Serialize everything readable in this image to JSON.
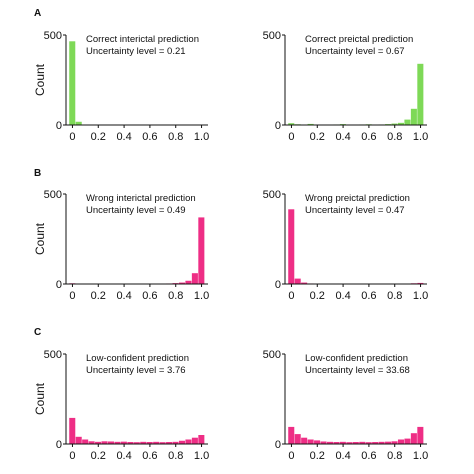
{
  "panel_letters": [
    "A",
    "B",
    "C"
  ],
  "chart_data": [
    {
      "type": "bar",
      "panel": "A",
      "position": "left",
      "annotation": [
        "Correct interictal prediction",
        "Uncertainty level = 0.21"
      ],
      "ylabel": "Count",
      "ylim": [
        0,
        500
      ],
      "yticks": [
        0,
        500
      ],
      "xlim": [
        -0.05,
        1.05
      ],
      "xticks": [
        "0",
        "0.2",
        "0.4",
        "0.6",
        "0.8",
        "1.0"
      ],
      "xtick_values": [
        0,
        0.2,
        0.4,
        0.6,
        0.8,
        1.0
      ],
      "bin_width": 0.05,
      "bins": [
        0,
        0.05,
        0.1,
        0.15,
        0.2,
        0.25,
        0.3,
        0.35,
        0.4,
        0.45,
        0.5,
        0.55,
        0.6,
        0.65,
        0.7,
        0.75,
        0.8,
        0.85,
        0.9,
        0.95,
        1.0
      ],
      "values": [
        465,
        18,
        2,
        1,
        1,
        0,
        0,
        0,
        0,
        0,
        0,
        0,
        0,
        0,
        0,
        0,
        0,
        0,
        0,
        0,
        0
      ],
      "color": "#7ed957"
    },
    {
      "type": "bar",
      "panel": "A",
      "position": "right",
      "annotation": [
        "Correct preictal prediction",
        "Uncertainty level = 0.67"
      ],
      "ylabel": "",
      "ylim": [
        0,
        500
      ],
      "yticks": [
        0,
        500
      ],
      "xlim": [
        -0.05,
        1.05
      ],
      "xticks": [
        "0",
        "0.2",
        "0.4",
        "0.6",
        "0.8",
        "1.0"
      ],
      "xtick_values": [
        0,
        0.2,
        0.4,
        0.6,
        0.8,
        1.0
      ],
      "bin_width": 0.05,
      "bins": [
        0,
        0.05,
        0.1,
        0.15,
        0.2,
        0.25,
        0.3,
        0.35,
        0.4,
        0.45,
        0.5,
        0.55,
        0.6,
        0.65,
        0.7,
        0.75,
        0.8,
        0.85,
        0.9,
        0.95,
        1.0
      ],
      "values": [
        10,
        4,
        2,
        6,
        2,
        2,
        2,
        3,
        5,
        2,
        2,
        3,
        4,
        2,
        3,
        5,
        8,
        12,
        30,
        90,
        340
      ],
      "color": "#7ed957"
    },
    {
      "type": "bar",
      "panel": "B",
      "position": "left",
      "annotation": [
        "Wrong interictal prediction",
        "Uncertainty level = 0.49"
      ],
      "ylabel": "Count",
      "ylim": [
        0,
        500
      ],
      "yticks": [
        0,
        500
      ],
      "xlim": [
        -0.05,
        1.05
      ],
      "xticks": [
        "0",
        "0.2",
        "0.4",
        "0.6",
        "0.8",
        "1.0"
      ],
      "xtick_values": [
        0,
        0.2,
        0.4,
        0.6,
        0.8,
        1.0
      ],
      "bin_width": 0.05,
      "bins": [
        0,
        0.05,
        0.1,
        0.15,
        0.2,
        0.25,
        0.3,
        0.35,
        0.4,
        0.45,
        0.5,
        0.55,
        0.6,
        0.65,
        0.7,
        0.75,
        0.8,
        0.85,
        0.9,
        0.95,
        1.0
      ],
      "values": [
        4,
        2,
        1,
        1,
        1,
        0,
        0,
        1,
        0,
        0,
        1,
        0,
        1,
        1,
        2,
        3,
        5,
        8,
        18,
        60,
        370
      ],
      "color": "#ee2e85"
    },
    {
      "type": "bar",
      "panel": "B",
      "position": "right",
      "annotation": [
        "Wrong preictal prediction",
        "Uncertainty level = 0.47"
      ],
      "ylabel": "",
      "ylim": [
        0,
        500
      ],
      "yticks": [
        0,
        500
      ],
      "xlim": [
        -0.05,
        1.05
      ],
      "xticks": [
        "0",
        "0.2",
        "0.4",
        "0.6",
        "0.8",
        "1.0"
      ],
      "xtick_values": [
        0,
        0.2,
        0.4,
        0.6,
        0.8,
        1.0
      ],
      "bin_width": 0.05,
      "bins": [
        0,
        0.05,
        0.1,
        0.15,
        0.2,
        0.25,
        0.3,
        0.35,
        0.4,
        0.45,
        0.5,
        0.55,
        0.6,
        0.65,
        0.7,
        0.75,
        0.8,
        0.85,
        0.9,
        0.95,
        1.0
      ],
      "values": [
        415,
        30,
        8,
        3,
        2,
        1,
        1,
        1,
        1,
        0,
        1,
        0,
        0,
        1,
        0,
        1,
        1,
        1,
        2,
        4,
        6
      ],
      "color": "#ee2e85"
    },
    {
      "type": "bar",
      "panel": "C",
      "position": "left",
      "annotation": [
        "Low-confident prediction",
        "Uncertainty level = 3.76"
      ],
      "ylabel": "Count",
      "ylim": [
        0,
        500
      ],
      "yticks": [
        0,
        500
      ],
      "xlim": [
        -0.05,
        1.05
      ],
      "xticks": [
        "0",
        "0.2",
        "0.4",
        "0.6",
        "0.8",
        "1.0"
      ],
      "xtick_values": [
        0,
        0.2,
        0.4,
        0.6,
        0.8,
        1.0
      ],
      "bin_width": 0.05,
      "bins": [
        0,
        0.05,
        0.1,
        0.15,
        0.2,
        0.25,
        0.3,
        0.35,
        0.4,
        0.45,
        0.5,
        0.55,
        0.6,
        0.65,
        0.7,
        0.75,
        0.8,
        0.85,
        0.9,
        0.95,
        1.0
      ],
      "values": [
        145,
        40,
        25,
        15,
        12,
        15,
        14,
        12,
        13,
        11,
        10,
        12,
        11,
        12,
        10,
        11,
        12,
        18,
        25,
        35,
        50
      ],
      "color": "#ee2e85"
    },
    {
      "type": "bar",
      "panel": "C",
      "position": "right",
      "annotation": [
        "Low-confident prediction",
        "Uncertainty level = 33.68"
      ],
      "ylabel": "",
      "ylim": [
        0,
        500
      ],
      "yticks": [
        0,
        500
      ],
      "xlim": [
        -0.05,
        1.05
      ],
      "xticks": [
        "0",
        "0.2",
        "0.4",
        "0.6",
        "0.8",
        "1.0"
      ],
      "xtick_values": [
        0,
        0.2,
        0.4,
        0.6,
        0.8,
        1.0
      ],
      "bin_width": 0.05,
      "bins": [
        0,
        0.05,
        0.1,
        0.15,
        0.2,
        0.25,
        0.3,
        0.35,
        0.4,
        0.45,
        0.5,
        0.55,
        0.6,
        0.65,
        0.7,
        0.75,
        0.8,
        0.85,
        0.9,
        0.95,
        1.0
      ],
      "values": [
        95,
        55,
        35,
        25,
        20,
        14,
        12,
        11,
        12,
        10,
        11,
        12,
        10,
        11,
        12,
        13,
        15,
        25,
        30,
        60,
        95
      ],
      "color": "#ee2e85"
    }
  ]
}
